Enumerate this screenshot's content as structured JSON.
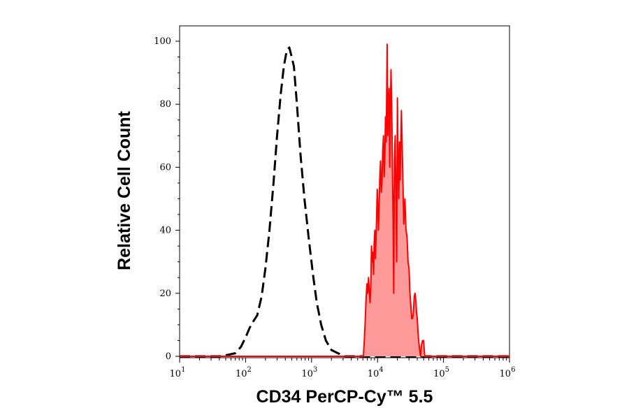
{
  "chart_data": {
    "type": "area",
    "xlabel": "CD34 PerCP-Cy™ 5.5",
    "ylabel": "Relative Cell Count",
    "xscale": "log",
    "xlim": [
      10,
      1000000
    ],
    "ylim": [
      0,
      100
    ],
    "xticks": [
      {
        "base": "10",
        "exp": "1"
      },
      {
        "base": "10",
        "exp": "2"
      },
      {
        "base": "10",
        "exp": "3"
      },
      {
        "base": "10",
        "exp": "4"
      },
      {
        "base": "10",
        "exp": "5"
      },
      {
        "base": "10",
        "exp": "6"
      }
    ],
    "yticks": [
      "0",
      "20",
      "40",
      "60",
      "80",
      "100"
    ],
    "series": [
      {
        "style": "dashed",
        "color": "#000000",
        "points": [
          [
            10,
            0
          ],
          [
            40,
            0
          ],
          [
            55,
            0.5
          ],
          [
            70,
            1
          ],
          [
            85,
            3
          ],
          [
            100,
            6
          ],
          [
            115,
            9
          ],
          [
            130,
            11
          ],
          [
            150,
            13
          ],
          [
            175,
            19
          ],
          [
            200,
            28
          ],
          [
            230,
            40
          ],
          [
            265,
            55
          ],
          [
            300,
            70
          ],
          [
            340,
            83
          ],
          [
            380,
            92
          ],
          [
            420,
            97
          ],
          [
            460,
            98
          ],
          [
            500,
            95
          ],
          [
            540,
            92
          ],
          [
            600,
            80
          ],
          [
            680,
            64
          ],
          [
            780,
            50
          ],
          [
            900,
            38
          ],
          [
            1050,
            26
          ],
          [
            1200,
            17
          ],
          [
            1400,
            10
          ],
          [
            1650,
            5
          ],
          [
            2000,
            2
          ],
          [
            2500,
            1
          ],
          [
            3200,
            0
          ],
          [
            6000,
            0
          ],
          [
            1000000,
            0
          ]
        ]
      },
      {
        "style": "filled",
        "color": "#ff0000",
        "fill": "#ff9a9a",
        "points": [
          [
            10,
            0
          ],
          [
            6100,
            0
          ],
          [
            6300,
            5
          ],
          [
            6500,
            11
          ],
          [
            6700,
            18
          ],
          [
            6900,
            23
          ],
          [
            7100,
            20
          ],
          [
            7300,
            25
          ],
          [
            7500,
            21
          ],
          [
            7700,
            17
          ],
          [
            7900,
            22
          ],
          [
            8100,
            35
          ],
          [
            8300,
            30
          ],
          [
            8500,
            33
          ],
          [
            8700,
            26
          ],
          [
            8900,
            36
          ],
          [
            9100,
            40
          ],
          [
            9300,
            31
          ],
          [
            9500,
            38
          ],
          [
            9700,
            45
          ],
          [
            9900,
            53
          ],
          [
            10100,
            48
          ],
          [
            10300,
            40
          ],
          [
            10500,
            45
          ],
          [
            10800,
            56
          ],
          [
            11100,
            62
          ],
          [
            11400,
            52
          ],
          [
            11700,
            56
          ],
          [
            12000,
            65
          ],
          [
            12300,
            70
          ],
          [
            12600,
            57
          ],
          [
            12900,
            63
          ],
          [
            13200,
            76
          ],
          [
            13500,
            68
          ],
          [
            13800,
            86
          ],
          [
            14000,
            99
          ],
          [
            14300,
            70
          ],
          [
            14600,
            80
          ],
          [
            15000,
            85
          ],
          [
            15300,
            60
          ],
          [
            15600,
            76
          ],
          [
            16000,
            91
          ],
          [
            16400,
            80
          ],
          [
            16800,
            60
          ],
          [
            17200,
            45
          ],
          [
            17600,
            20
          ],
          [
            18000,
            62
          ],
          [
            18500,
            70
          ],
          [
            19000,
            50
          ],
          [
            19500,
            30
          ],
          [
            20000,
            82
          ],
          [
            20500,
            60
          ],
          [
            21000,
            50
          ],
          [
            21500,
            68
          ],
          [
            22000,
            56
          ],
          [
            23000,
            78
          ],
          [
            24000,
            60
          ],
          [
            25000,
            42
          ],
          [
            26000,
            50
          ],
          [
            27000,
            40
          ],
          [
            28000,
            38
          ],
          [
            29000,
            30
          ],
          [
            30000,
            28
          ],
          [
            31000,
            20
          ],
          [
            32000,
            16
          ],
          [
            33000,
            12
          ],
          [
            34000,
            12
          ],
          [
            35000,
            14
          ],
          [
            36000,
            19
          ],
          [
            37000,
            20
          ],
          [
            38000,
            18
          ],
          [
            39000,
            14
          ],
          [
            40000,
            12
          ],
          [
            41000,
            8
          ],
          [
            42000,
            5
          ],
          [
            43000,
            3
          ],
          [
            44000,
            1
          ],
          [
            45000,
            0
          ],
          [
            46000,
            3
          ],
          [
            48000,
            5
          ],
          [
            50000,
            5
          ],
          [
            51000,
            2
          ],
          [
            52000,
            0
          ],
          [
            1000000,
            0
          ]
        ]
      }
    ]
  }
}
